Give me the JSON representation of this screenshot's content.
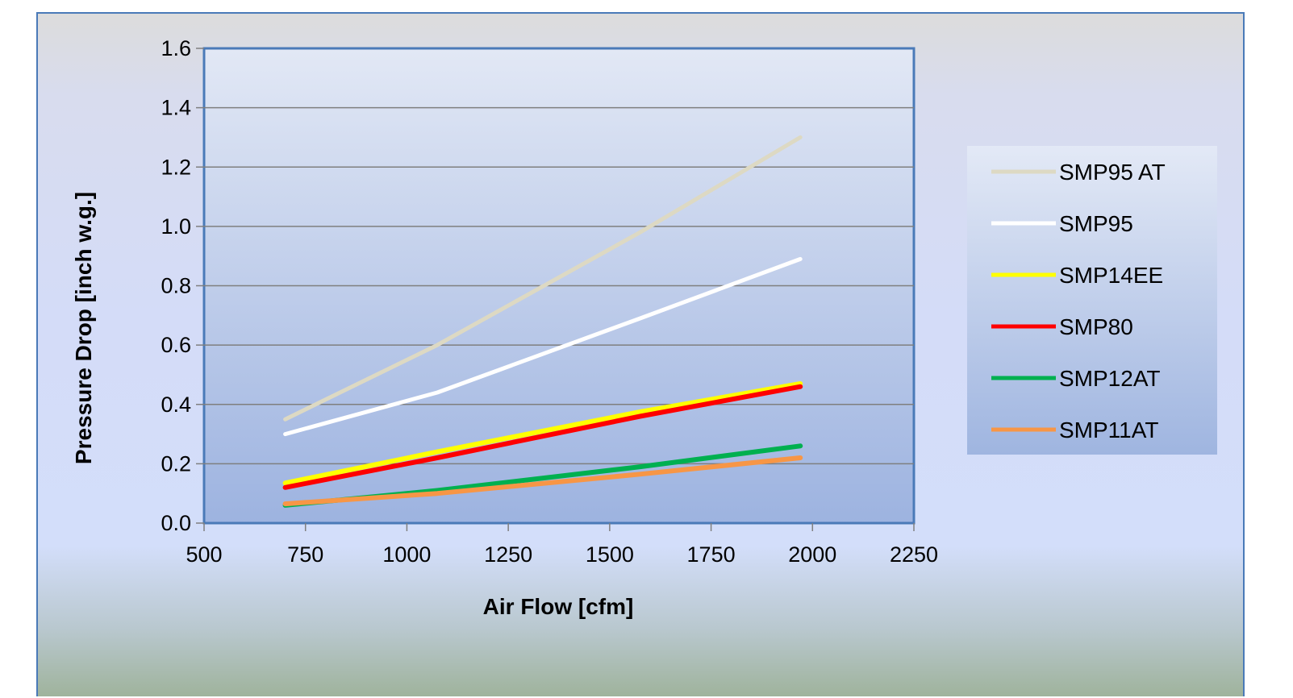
{
  "chart_data": {
    "type": "line",
    "title": "",
    "xlabel": "Air Flow [cfm]",
    "ylabel": "Pressure Drop [inch w.g.]",
    "xlim": [
      500,
      2250
    ],
    "ylim": [
      0,
      1.6
    ],
    "x_ticks": [
      500,
      750,
      1000,
      1250,
      1500,
      1750,
      2000,
      2250
    ],
    "x_tick_labels": [
      "500",
      "750",
      "1000",
      "1250",
      "1500",
      "1750",
      "2000",
      "2250"
    ],
    "y_ticks": [
      0,
      0.2,
      0.4,
      0.6,
      0.8,
      1.0,
      1.2,
      1.4,
      1.6
    ],
    "y_tick_labels": [
      "0.0",
      "0.2",
      "0.4",
      "0.6",
      "0.8",
      "1.0",
      "1.2",
      "1.4",
      "1.6"
    ],
    "grid": "horizontal",
    "legend_position": "right",
    "series": [
      {
        "name": "SMP95 AT",
        "color": "#ddd9c3",
        "x": [
          700,
          1075,
          1575,
          1970
        ],
        "y": [
          0.35,
          0.6,
          0.98,
          1.3
        ]
      },
      {
        "name": "SMP95",
        "color": "#ffffff",
        "x": [
          700,
          1075,
          1575,
          1970
        ],
        "y": [
          0.3,
          0.44,
          0.69,
          0.89
        ]
      },
      {
        "name": "SMP14EE",
        "color": "#ffff00",
        "x": [
          700,
          1075,
          1575,
          1970
        ],
        "y": [
          0.135,
          0.24,
          0.375,
          0.47
        ]
      },
      {
        "name": "SMP80",
        "color": "#ff0000",
        "x": [
          700,
          1075,
          1575,
          1970
        ],
        "y": [
          0.12,
          0.22,
          0.36,
          0.46
        ]
      },
      {
        "name": "SMP12AT",
        "color": "#00b050",
        "x": [
          700,
          1075,
          1575,
          1970
        ],
        "y": [
          0.06,
          0.11,
          0.19,
          0.26
        ]
      },
      {
        "name": "SMP11AT",
        "color": "#f79646",
        "x": [
          700,
          1075,
          1575,
          1970
        ],
        "y": [
          0.065,
          0.1,
          0.165,
          0.22
        ]
      }
    ]
  }
}
